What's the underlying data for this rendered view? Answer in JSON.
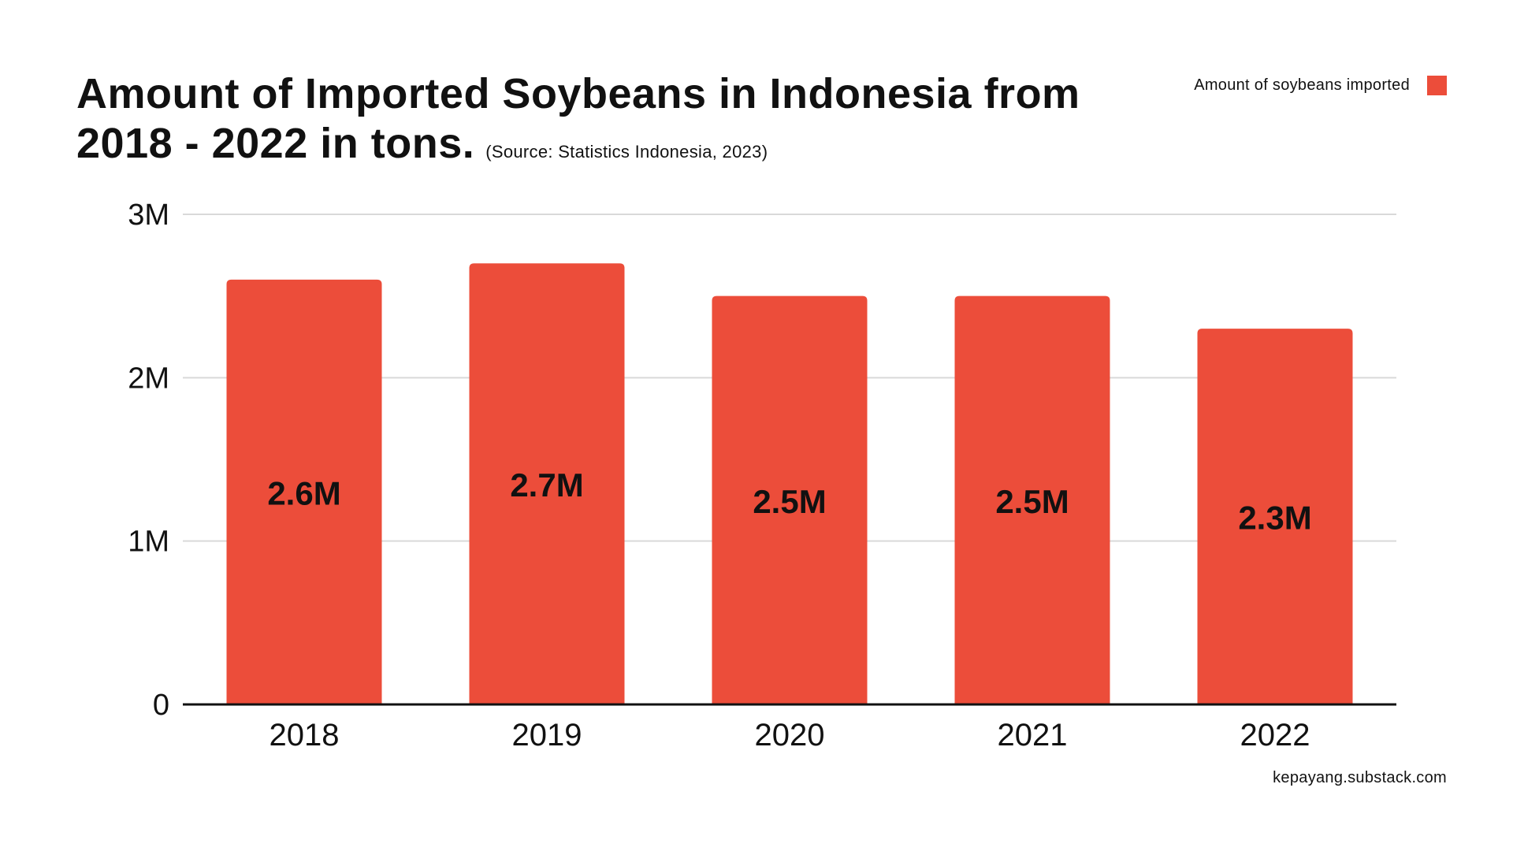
{
  "title": {
    "line1": "Amount of Imported Soybeans in Indonesia from",
    "line2": "2018 - 2022 in tons.",
    "source": "(Source: Statistics Indonesia, 2023)"
  },
  "legend": {
    "label": "Amount of soybeans imported",
    "color": "#ec4d3a"
  },
  "footer": "kepayang.substack.com",
  "chart_data": {
    "type": "bar",
    "categories": [
      "2018",
      "2019",
      "2020",
      "2021",
      "2022"
    ],
    "series": [
      {
        "name": "Amount of soybeans imported",
        "values": [
          2600000,
          2700000,
          2500000,
          2500000,
          2300000
        ],
        "data_labels": [
          "2.6M",
          "2.7M",
          "2.5M",
          "2.5M",
          "2.3M"
        ],
        "color": "#ec4d3a"
      }
    ],
    "y_ticks": [
      {
        "value": 0,
        "label": "0"
      },
      {
        "value": 1000000,
        "label": "1M"
      },
      {
        "value": 2000000,
        "label": "2M"
      },
      {
        "value": 3000000,
        "label": "3M"
      }
    ],
    "ylim": [
      0,
      3000000
    ],
    "grid": true,
    "legend_position": "top-right"
  }
}
